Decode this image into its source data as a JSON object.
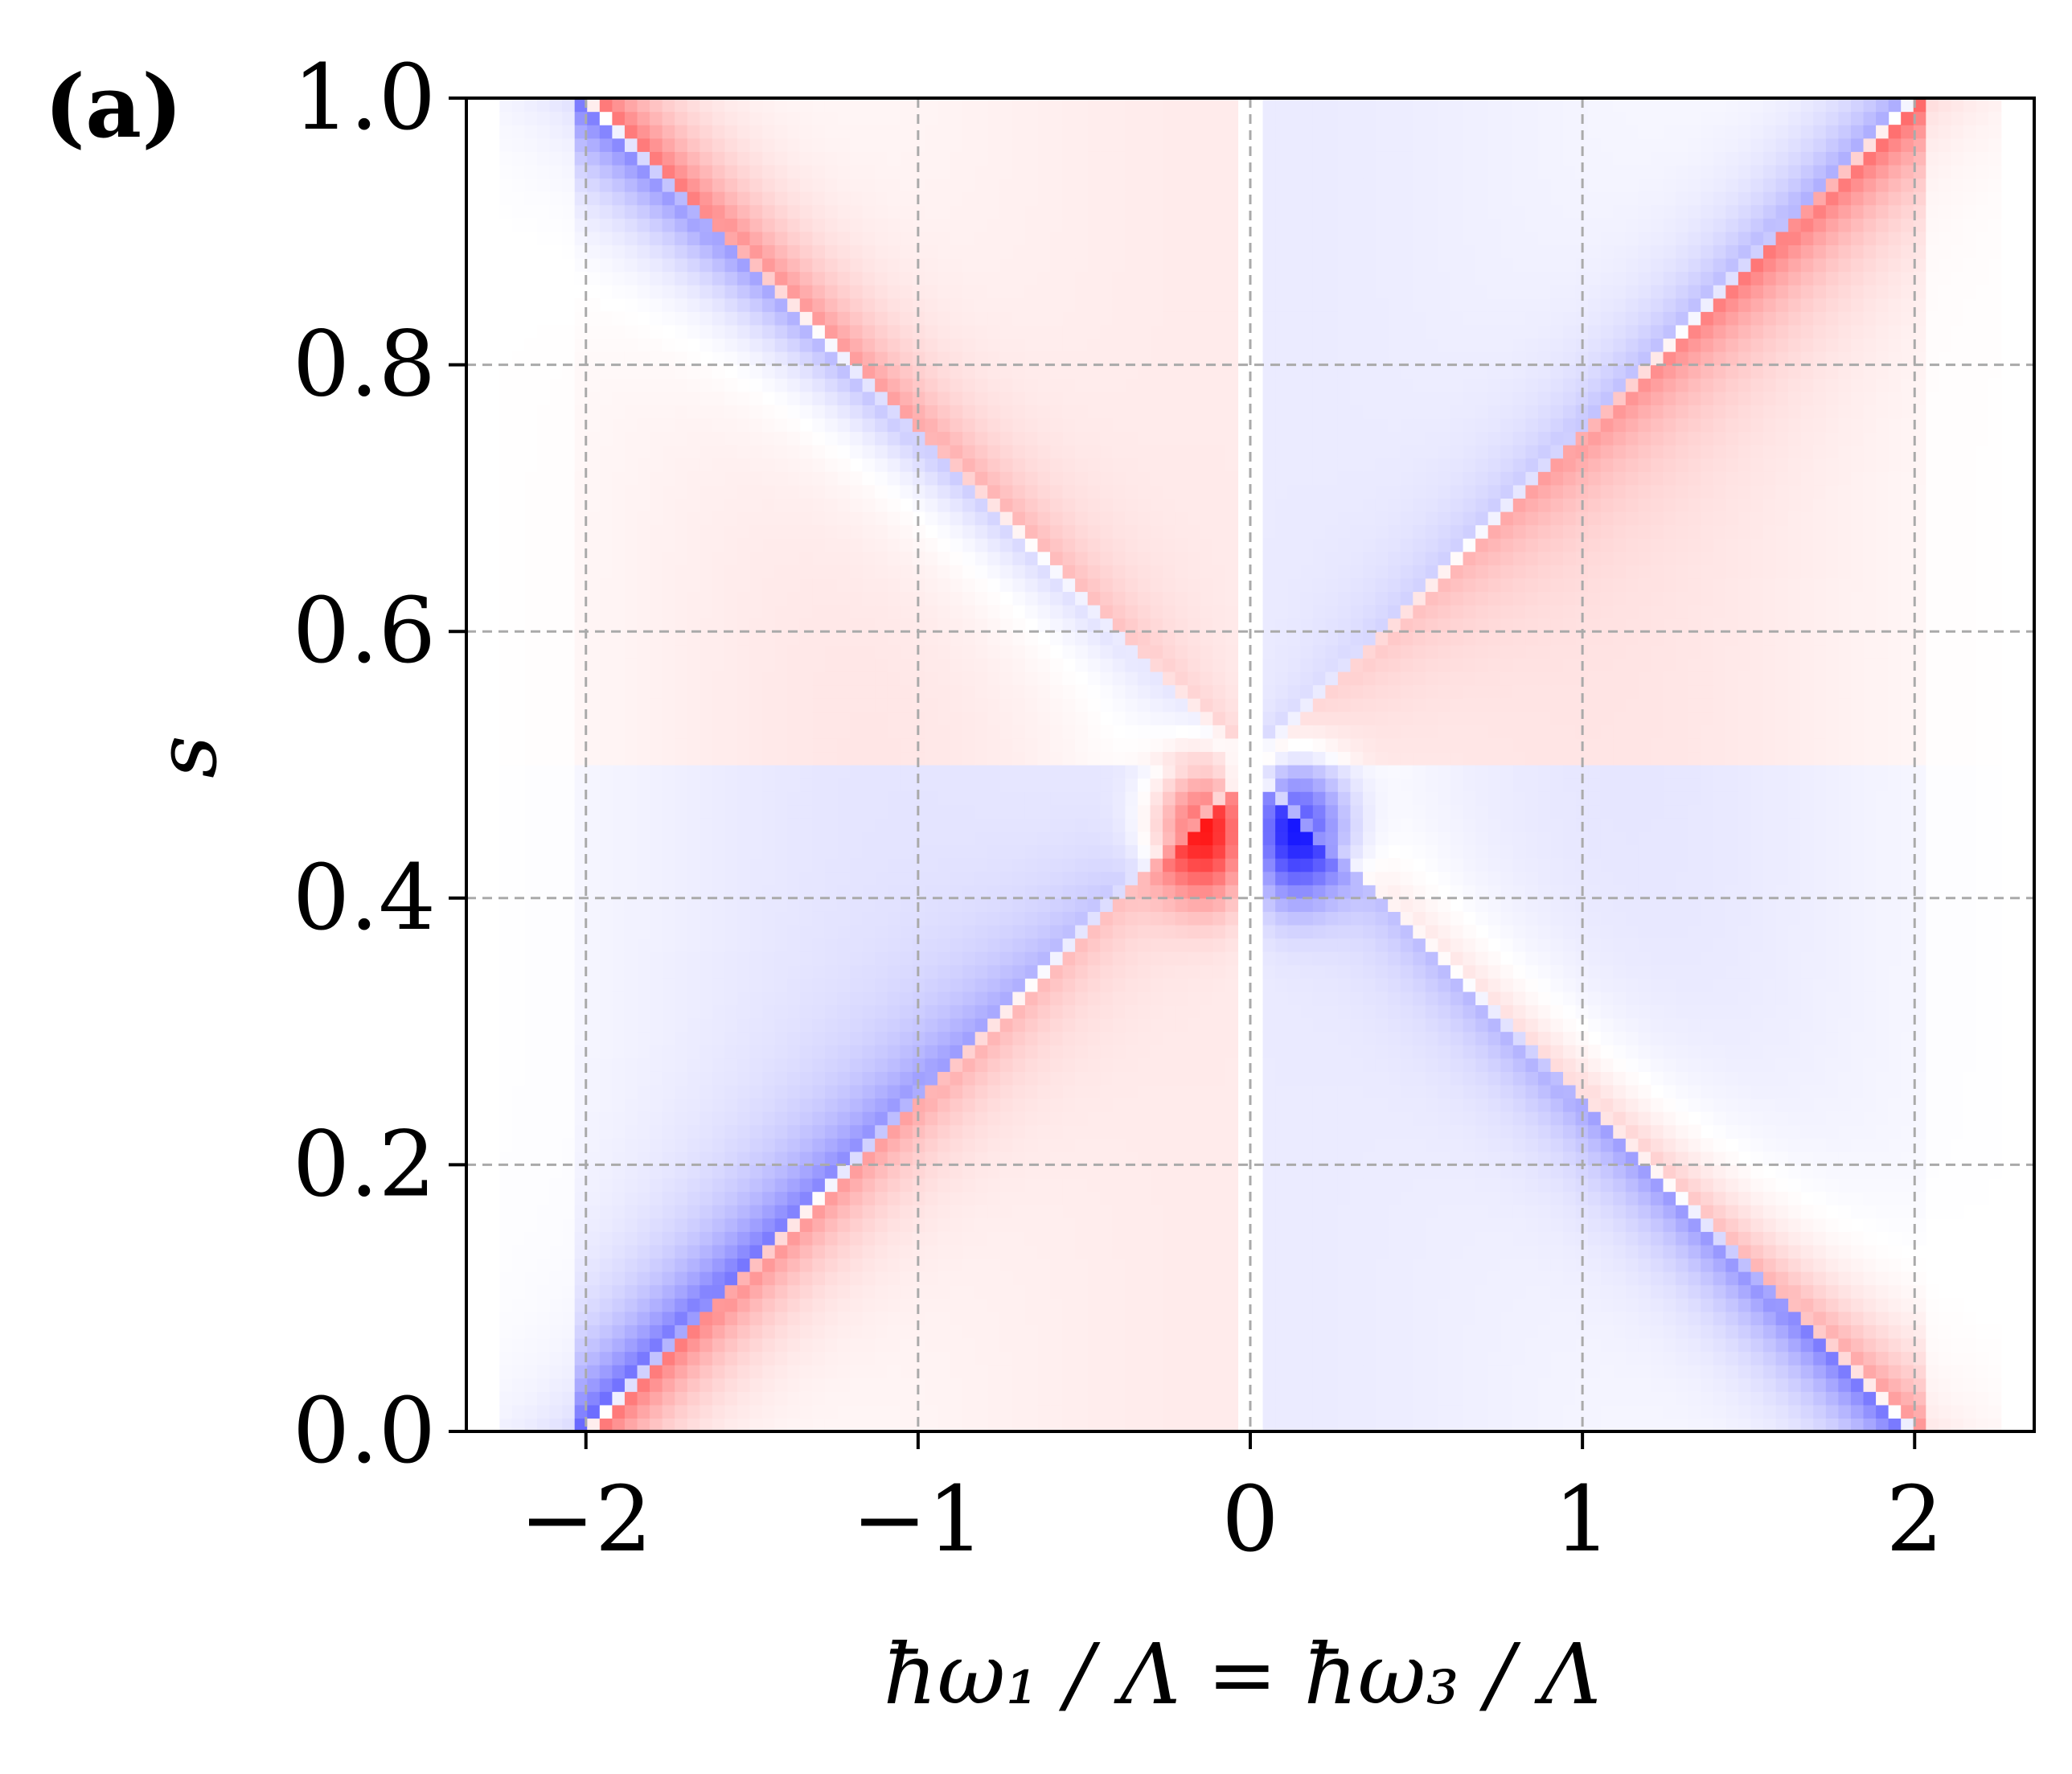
{
  "panel_label": "(a)",
  "chart_data": {
    "type": "heatmap",
    "title": "",
    "xlabel": "ħω₁ / Λ = ħω₃ / Λ",
    "ylabel": "s",
    "xlim": [
      -2.36,
      2.36
    ],
    "ylim": [
      0.0,
      1.0
    ],
    "x_ticks": [
      -2,
      -1,
      0,
      1,
      2
    ],
    "x_tick_labels": [
      "−2",
      "−1",
      "0",
      "1",
      "2"
    ],
    "y_ticks": [
      0.0,
      0.2,
      0.4,
      0.6,
      0.8,
      1.0
    ],
    "y_tick_labels": [
      "0.0",
      "0.2",
      "0.4",
      "0.6",
      "0.8",
      "1.0"
    ],
    "grid": true,
    "colormap": "bwr",
    "colors": {
      "negative": "#0000ff",
      "zero": "#ffffff",
      "positive": "#ff0000",
      "grid": "#aaaaaa"
    },
    "features": [
      {
        "name": "positive ridge",
        "sign": "positive",
        "from": [
          -2.0,
          0.0
        ],
        "to": [
          2.0,
          1.0
        ],
        "peak": [
          1.95,
          0.98
        ]
      },
      {
        "name": "negative ridge",
        "sign": "negative",
        "from": [
          -2.0,
          1.0
        ],
        "to": [
          2.0,
          0.0
        ],
        "peak": [
          -1.95,
          0.98
        ]
      },
      {
        "name": "positive lobe",
        "sign": "positive",
        "center": [
          -0.1,
          0.45
        ]
      },
      {
        "name": "negative lobe",
        "sign": "negative",
        "center": [
          0.1,
          0.45
        ]
      }
    ]
  }
}
